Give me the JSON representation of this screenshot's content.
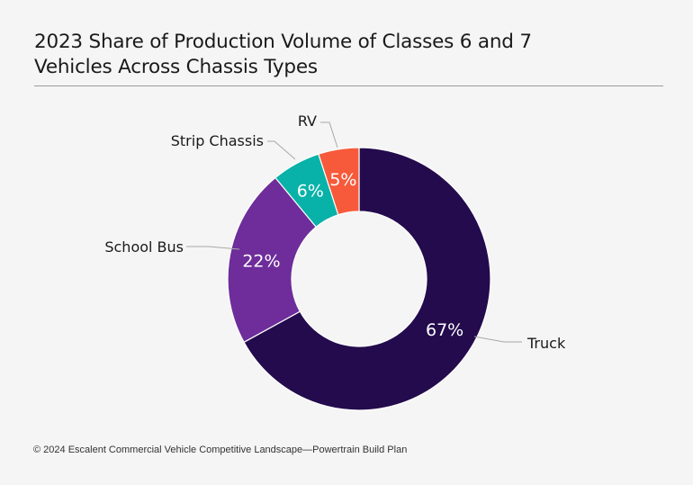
{
  "title_lines": [
    "2023 Share of Production Volume of Classes 6 and 7",
    "Vehicles Across Chassis Types"
  ],
  "footer": "© 2024 Escalent Commercial Vehicle Competitive Landscape—Powertrain Build Plan",
  "colors": {
    "Truck": "#230b4d",
    "School Bus": "#6e2d9a",
    "Strip Chassis": "#08b2a8",
    "RV": "#f75a3a"
  },
  "chart_data": {
    "type": "pie",
    "donut": true,
    "title": "2023 Share of Production Volume of Classes 6 and 7 Vehicles Across Chassis Types",
    "categories": [
      "Truck",
      "School Bus",
      "Strip Chassis",
      "RV"
    ],
    "values": [
      67,
      22,
      6,
      5
    ],
    "data_labels": [
      "67%",
      "22%",
      "6%",
      "5%"
    ],
    "legend": "none"
  }
}
